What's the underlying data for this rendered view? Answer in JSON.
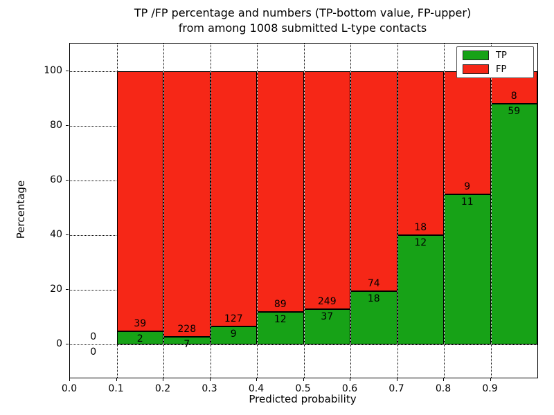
{
  "title": {
    "line1": "TP /FP percentage and numbers (TP-bottom value, FP-upper)",
    "line2": "from among 1008 submitted L-type contacts"
  },
  "chart_data": {
    "type": "bar",
    "stacked": true,
    "title": "TP /FP percentage and numbers (TP-bottom value, FP-upper)\nfrom among 1008 submitted L-type contacts",
    "xlabel": "Predicted probability",
    "ylabel": "Percentage",
    "xlim": [
      0.0,
      1.0
    ],
    "ylim": [
      -12,
      110
    ],
    "xticks": [
      "0.0",
      "0.1",
      "0.2",
      "0.3",
      "0.4",
      "0.5",
      "0.6",
      "0.7",
      "0.8",
      "0.9"
    ],
    "yticks": [
      0,
      20,
      40,
      60,
      80,
      100
    ],
    "grid": true,
    "legend": {
      "position": "upper right",
      "entries": [
        {
          "label": "TP",
          "color": "#17a217"
        },
        {
          "label": "FP",
          "color": "#f62717"
        }
      ]
    },
    "colors": {
      "tp": "#17a217",
      "fp": "#f62717",
      "bar_edge": "#000000"
    },
    "bins": [
      {
        "start": 0.0,
        "end": 0.1,
        "tp": 0,
        "fp": 0,
        "tp_pct": 0
      },
      {
        "start": 0.1,
        "end": 0.2,
        "tp": 2,
        "fp": 39,
        "tp_pct": 4.88
      },
      {
        "start": 0.2,
        "end": 0.3,
        "tp": 7,
        "fp": 228,
        "tp_pct": 2.98
      },
      {
        "start": 0.3,
        "end": 0.4,
        "tp": 9,
        "fp": 127,
        "tp_pct": 6.62
      },
      {
        "start": 0.4,
        "end": 0.5,
        "tp": 12,
        "fp": 89,
        "tp_pct": 11.88
      },
      {
        "start": 0.5,
        "end": 0.6,
        "tp": 37,
        "fp": 249,
        "tp_pct": 12.94
      },
      {
        "start": 0.6,
        "end": 0.7,
        "tp": 18,
        "fp": 74,
        "tp_pct": 19.57
      },
      {
        "start": 0.7,
        "end": 0.8,
        "tp": 12,
        "fp": 18,
        "tp_pct": 40.0
      },
      {
        "start": 0.8,
        "end": 0.9,
        "tp": 11,
        "fp": 9,
        "tp_pct": 55.0
      },
      {
        "start": 0.9,
        "end": 1.0,
        "tp": 59,
        "fp": 8,
        "tp_pct": 88.06
      }
    ]
  }
}
